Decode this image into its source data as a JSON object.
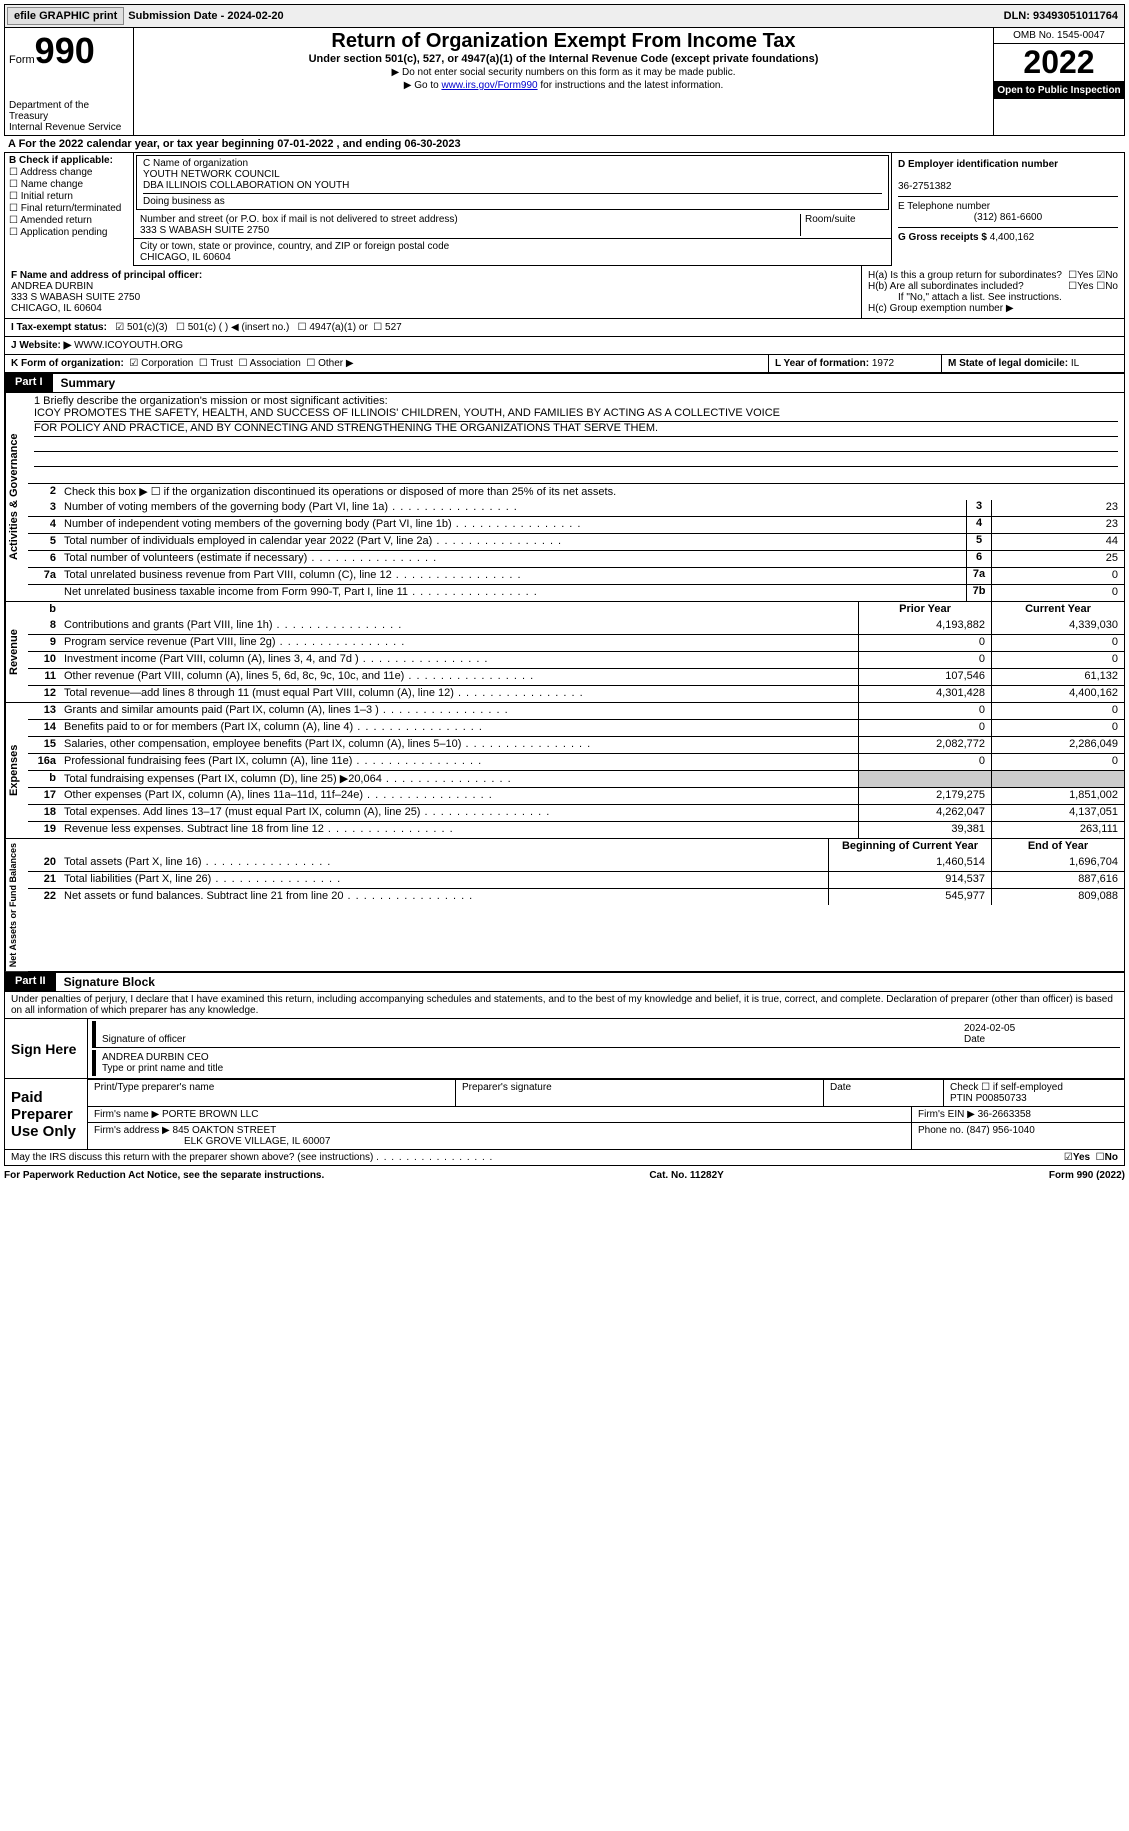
{
  "top": {
    "efile_btn": "efile GRAPHIC print",
    "sub_date_label": "Submission Date - ",
    "sub_date": "2024-02-20",
    "dln_label": "DLN: ",
    "dln": "93493051011764"
  },
  "hdr": {
    "form_word": "Form",
    "form_num": "990",
    "dept": "Department of the Treasury\nInternal Revenue Service",
    "title": "Return of Organization Exempt From Income Tax",
    "sub": "Under section 501(c), 527, or 4947(a)(1) of the Internal Revenue Code (except private foundations)",
    "note1": "▶ Do not enter social security numbers on this form as it may be made public.",
    "note2_a": "▶ Go to ",
    "note2_link": "www.irs.gov/Form990",
    "note2_b": " for instructions and the latest information.",
    "omb": "OMB No. 1545-0047",
    "year": "2022",
    "open": "Open to Public Inspection"
  },
  "cal": {
    "line": "A For the 2022 calendar year, or tax year beginning 07-01-2022    , and ending 06-30-2023"
  },
  "b": {
    "title": "B Check if applicable:",
    "items": [
      "Address change",
      "Name change",
      "Initial return",
      "Final return/terminated",
      "Amended return",
      "Application pending"
    ]
  },
  "c": {
    "label_name": "C Name of organization",
    "name1": "YOUTH NETWORK COUNCIL",
    "name2": "DBA ILLINOIS COLLABORATION ON YOUTH",
    "dba_label": "Doing business as",
    "addr_label": "Number and street (or P.O. box if mail is not delivered to street address)",
    "room_label": "Room/suite",
    "addr": "333 S WABASH SUITE 2750",
    "city_label": "City or town, state or province, country, and ZIP or foreign postal code",
    "city": "CHICAGO, IL  60604"
  },
  "d": {
    "label": "D Employer identification number",
    "val": "36-2751382"
  },
  "e": {
    "label": "E Telephone number",
    "val": "(312) 861-6600"
  },
  "g": {
    "label": "G Gross receipts $ ",
    "val": "4,400,162"
  },
  "f": {
    "label": "F  Name and address of principal officer:",
    "name": "ANDREA DURBIN",
    "addr1": "333 S WABASH SUITE 2750",
    "addr2": "CHICAGO, IL  60604"
  },
  "h": {
    "a": "H(a)  Is this a group return for subordinates?",
    "b": "H(b)  Are all subordinates included?",
    "b_note": "If \"No,\" attach a list. See instructions.",
    "c": "H(c)  Group exemption number ▶",
    "yes": "Yes",
    "no": "No"
  },
  "i": {
    "label": "I  Tax-exempt status:",
    "o1": "501(c)(3)",
    "o2": "501(c) (  ) ◀ (insert no.)",
    "o3": "4947(a)(1) or",
    "o4": "527"
  },
  "j": {
    "label": "J  Website: ▶",
    "val": " WWW.ICOYOUTH.ORG"
  },
  "k": {
    "label": "K Form of organization:",
    "o1": "Corporation",
    "o2": "Trust",
    "o3": "Association",
    "o4": "Other ▶"
  },
  "l": {
    "label": "L Year of formation: ",
    "val": "1972"
  },
  "m": {
    "label": "M State of legal domicile: ",
    "val": "IL"
  },
  "part1": {
    "tag": "Part I",
    "title": "Summary"
  },
  "mission": {
    "l1": "1   Briefly describe the organization's mission or most significant activities:",
    "t1": "ICOY PROMOTES THE SAFETY, HEALTH, AND SUCCESS OF ILLINOIS' CHILDREN, YOUTH, AND FAMILIES BY ACTING AS A COLLECTIVE VOICE",
    "t2": "FOR POLICY AND PRACTICE, AND BY CONNECTING AND STRENGTHENING THE ORGANIZATIONS THAT SERVE THEM."
  },
  "gov": {
    "l2": "Check this box ▶ ☐ if the organization discontinued its operations or disposed of more than 25% of its net assets.",
    "rows": [
      {
        "n": "3",
        "d": "Number of voting members of the governing body (Part VI, line 1a)",
        "c": "3",
        "v": "23"
      },
      {
        "n": "4",
        "d": "Number of independent voting members of the governing body (Part VI, line 1b)",
        "c": "4",
        "v": "23"
      },
      {
        "n": "5",
        "d": "Total number of individuals employed in calendar year 2022 (Part V, line 2a)",
        "c": "5",
        "v": "44"
      },
      {
        "n": "6",
        "d": "Total number of volunteers (estimate if necessary)",
        "c": "6",
        "v": "25"
      },
      {
        "n": "7a",
        "d": "Total unrelated business revenue from Part VIII, column (C), line 12",
        "c": "7a",
        "v": "0"
      },
      {
        "n": "",
        "d": "Net unrelated business taxable income from Form 990-T, Part I, line 11",
        "c": "7b",
        "v": "0"
      }
    ]
  },
  "headers": {
    "prior": "Prior Year",
    "current": "Current Year",
    "begin": "Beginning of Current Year",
    "end": "End of Year"
  },
  "rev": {
    "label": "Revenue",
    "rows": [
      {
        "n": "8",
        "d": "Contributions and grants (Part VIII, line 1h)",
        "p": "4,193,882",
        "c": "4,339,030"
      },
      {
        "n": "9",
        "d": "Program service revenue (Part VIII, line 2g)",
        "p": "0",
        "c": "0"
      },
      {
        "n": "10",
        "d": "Investment income (Part VIII, column (A), lines 3, 4, and 7d )",
        "p": "0",
        "c": "0"
      },
      {
        "n": "11",
        "d": "Other revenue (Part VIII, column (A), lines 5, 6d, 8c, 9c, 10c, and 11e)",
        "p": "107,546",
        "c": "61,132"
      },
      {
        "n": "12",
        "d": "Total revenue—add lines 8 through 11 (must equal Part VIII, column (A), line 12)",
        "p": "4,301,428",
        "c": "4,400,162"
      }
    ]
  },
  "exp": {
    "label": "Expenses",
    "rows": [
      {
        "n": "13",
        "d": "Grants and similar amounts paid (Part IX, column (A), lines 1–3 )",
        "p": "0",
        "c": "0"
      },
      {
        "n": "14",
        "d": "Benefits paid to or for members (Part IX, column (A), line 4)",
        "p": "0",
        "c": "0"
      },
      {
        "n": "15",
        "d": "Salaries, other compensation, employee benefits (Part IX, column (A), lines 5–10)",
        "p": "2,082,772",
        "c": "2,286,049"
      },
      {
        "n": "16a",
        "d": "Professional fundraising fees (Part IX, column (A), line 11e)",
        "p": "0",
        "c": "0"
      },
      {
        "n": "b",
        "d": "Total fundraising expenses (Part IX, column (D), line 25) ▶20,064",
        "p": "",
        "c": "",
        "grey": true
      },
      {
        "n": "17",
        "d": "Other expenses (Part IX, column (A), lines 11a–11d, 11f–24e)",
        "p": "2,179,275",
        "c": "1,851,002"
      },
      {
        "n": "18",
        "d": "Total expenses. Add lines 13–17 (must equal Part IX, column (A), line 25)",
        "p": "4,262,047",
        "c": "4,137,051"
      },
      {
        "n": "19",
        "d": "Revenue less expenses. Subtract line 18 from line 12",
        "p": "39,381",
        "c": "263,111"
      }
    ]
  },
  "net": {
    "label": "Net Assets or Fund Balances",
    "rows": [
      {
        "n": "20",
        "d": "Total assets (Part X, line 16)",
        "p": "1,460,514",
        "c": "1,696,704"
      },
      {
        "n": "21",
        "d": "Total liabilities (Part X, line 26)",
        "p": "914,537",
        "c": "887,616"
      },
      {
        "n": "22",
        "d": "Net assets or fund balances. Subtract line 21 from line 20",
        "p": "545,977",
        "c": "809,088"
      }
    ]
  },
  "part2": {
    "tag": "Part II",
    "title": "Signature Block",
    "decl": "Under penalties of perjury, I declare that I have examined this return, including accompanying schedules and statements, and to the best of my knowledge and belief, it is true, correct, and complete. Declaration of preparer (other than officer) is based on all information of which preparer has any knowledge."
  },
  "sign": {
    "here": "Sign Here",
    "sig_label": "Signature of officer",
    "date_label": "Date",
    "date": "2024-02-05",
    "name": "ANDREA DURBIN CEO",
    "name_label": "Type or print name and title"
  },
  "prep": {
    "label": "Paid Preparer Use Only",
    "c1": "Print/Type preparer's name",
    "c2": "Preparer's signature",
    "c3": "Date",
    "c4a": "Check ☐ if self-employed",
    "c4b": "PTIN",
    "ptin": "P00850733",
    "firm_label": "Firm's name    ▶",
    "firm": "PORTE BROWN LLC",
    "ein_label": "Firm's EIN ▶ ",
    "ein": "36-2663358",
    "addr_label": "Firm's address ▶",
    "addr1": "845 OAKTON STREET",
    "addr2": "ELK GROVE VILLAGE, IL  60007",
    "phone_label": "Phone no. ",
    "phone": "(847) 956-1040"
  },
  "discuss": "May the IRS discuss this return with the preparer shown above? (see instructions)",
  "foot": {
    "l": "For Paperwork Reduction Act Notice, see the separate instructions.",
    "m": "Cat. No. 11282Y",
    "r": "Form 990 (2022)"
  }
}
